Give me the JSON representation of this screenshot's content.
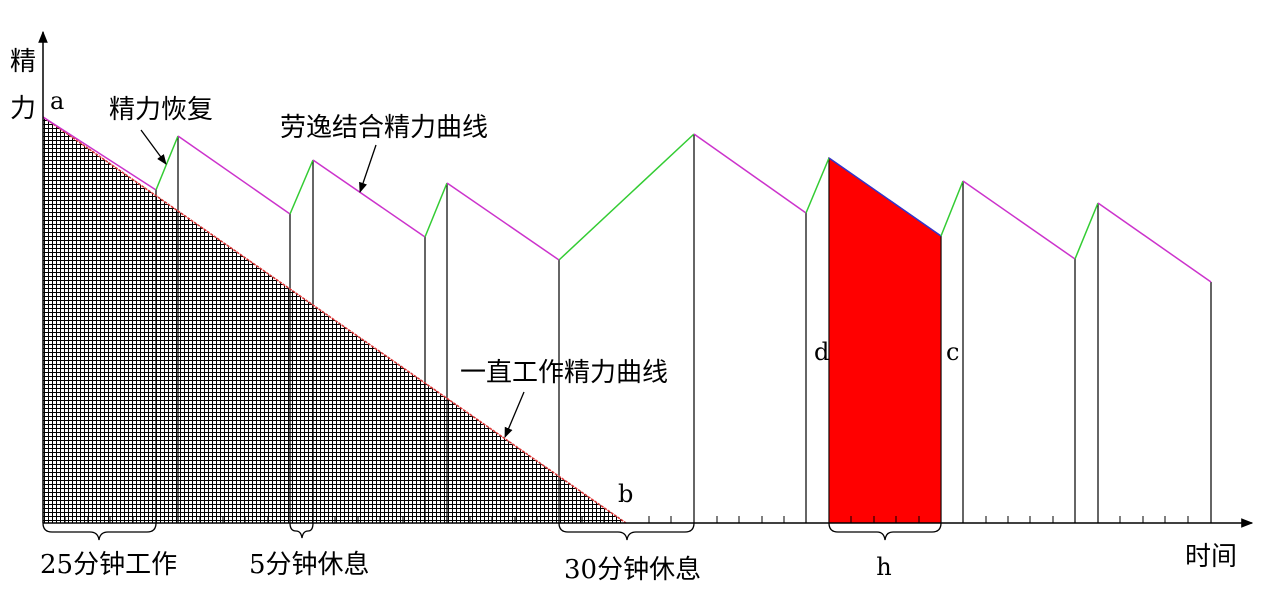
{
  "axes": {
    "y_label_top": "精",
    "y_label_bottom": "力",
    "x_label": "时间"
  },
  "points": {
    "a": "a",
    "b": "b",
    "c": "c",
    "d": "d",
    "h": "h"
  },
  "annotations": {
    "recovery": "精力恢复",
    "combined_curve": "劳逸结合精力曲线",
    "continuous_curve": "一直工作精力曲线"
  },
  "intervals": {
    "work": "25分钟工作",
    "short_rest": "5分钟休息",
    "long_rest": "30分钟休息"
  },
  "colors": {
    "work_line": "#cc33cc",
    "recovery_line": "#33cc33",
    "continuous_line": "#dd3333",
    "highlight_fill": "#ff0000",
    "hatch": "#000000"
  }
}
